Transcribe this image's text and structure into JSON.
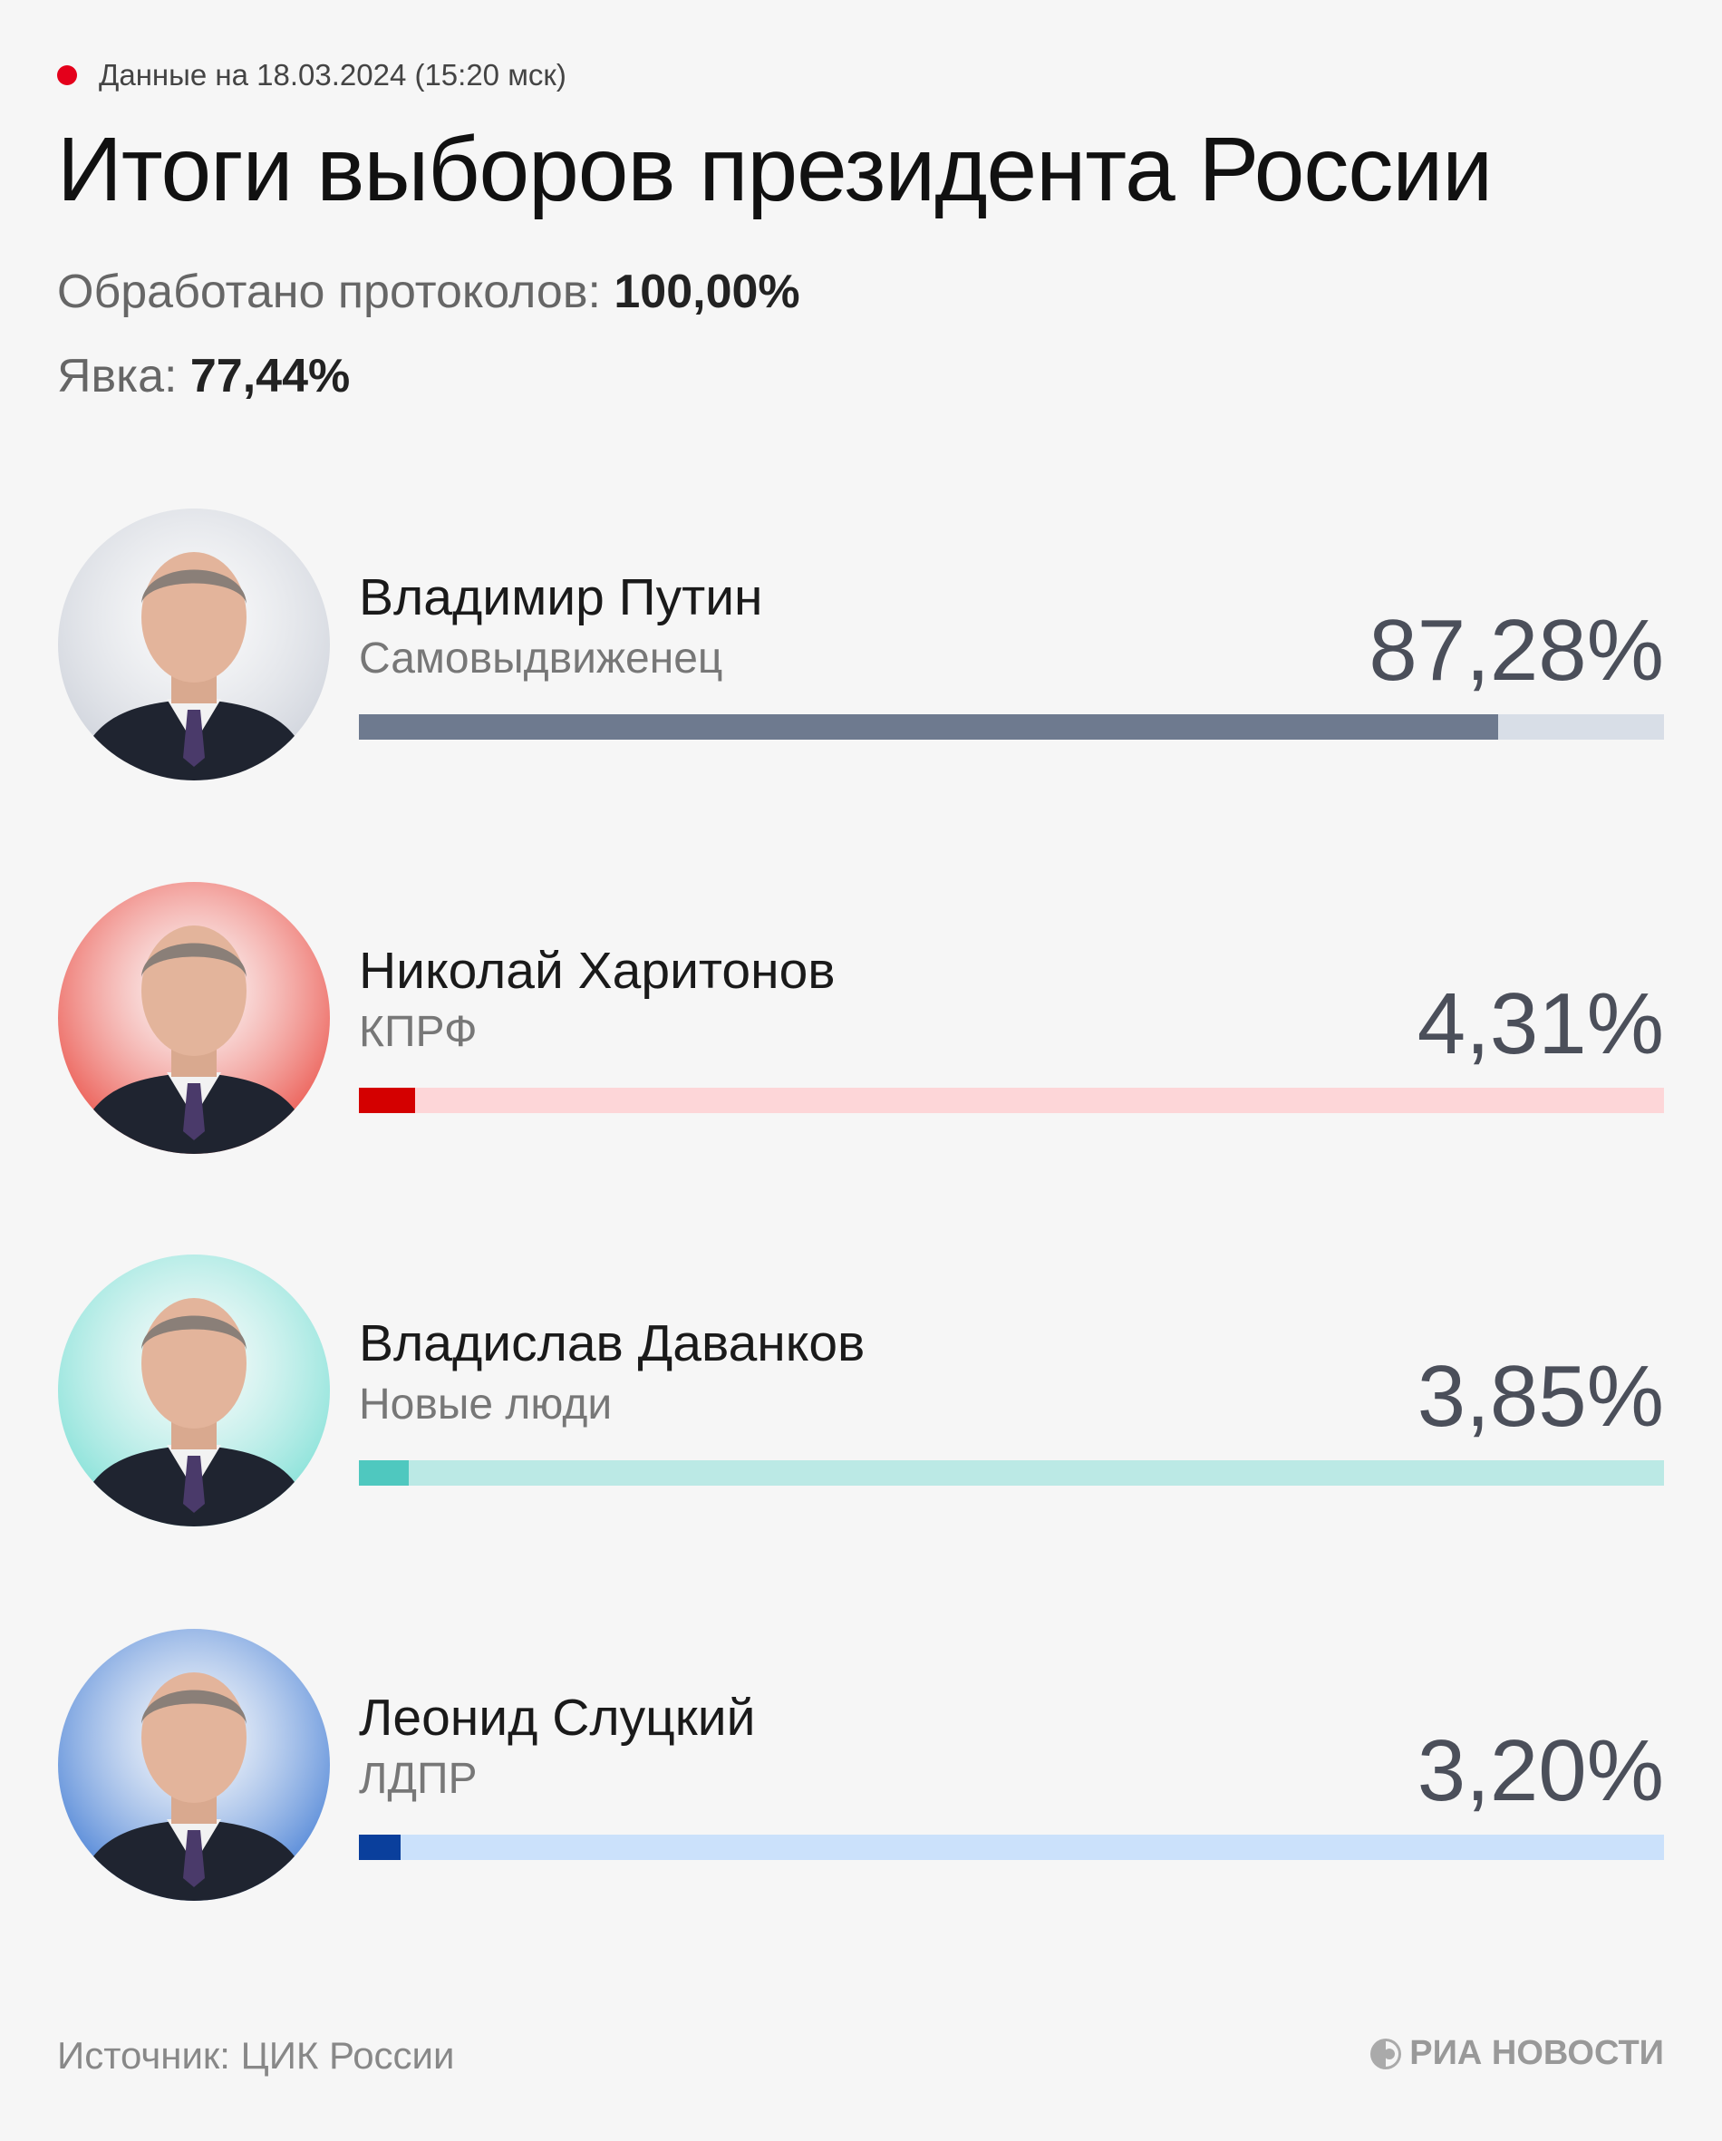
{
  "header": {
    "date_label": "Данные на 18.03.2024 (15:20 мск)",
    "title": "Итоги выборов президента России",
    "processed_label": "Обработано протоколов:",
    "processed_value": "100,00%",
    "turnout_label": "Явка:",
    "turnout_value": "77,44%",
    "live_dot_color": "#e4001b"
  },
  "chart_data": {
    "type": "bar",
    "orientation": "horizontal",
    "xlim": [
      0,
      100
    ],
    "categories": [
      "Владимир Путин",
      "Николай Харитонов",
      "Владислав Даванков",
      "Леонид Слуцкий"
    ],
    "values": [
      87.28,
      4.31,
      3.85,
      3.2
    ],
    "candidates": [
      {
        "name": "Владимир Путин",
        "party": "Самовыдвиженец",
        "percent_label": "87,28%",
        "value": 87.28,
        "color": "#6e7a8f",
        "track_color": "#d8dee7",
        "avatar_bg": "#c7ccd6"
      },
      {
        "name": "Николай Харитонов",
        "party": "КПРФ",
        "percent_label": "4,31%",
        "value": 4.31,
        "color": "#d40000",
        "track_color": "#fdd6d8",
        "avatar_bg": "#e8392f"
      },
      {
        "name": "Владислав Даванков",
        "party": "Новые люди",
        "percent_label": "3,85%",
        "value": 3.85,
        "color": "#4fc8bf",
        "track_color": "#bbe9e5",
        "avatar_bg": "#6fdcd1"
      },
      {
        "name": "Леонид Слуцкий",
        "party": "ЛДПР",
        "percent_label": "3,20%",
        "value": 3.2,
        "color": "#0a3f9c",
        "track_color": "#cbe1fb",
        "avatar_bg": "#2f6fd0"
      }
    ]
  },
  "footer": {
    "source": "Источник: ЦИК России",
    "logo_text": "РИА НОВОСТИ"
  }
}
